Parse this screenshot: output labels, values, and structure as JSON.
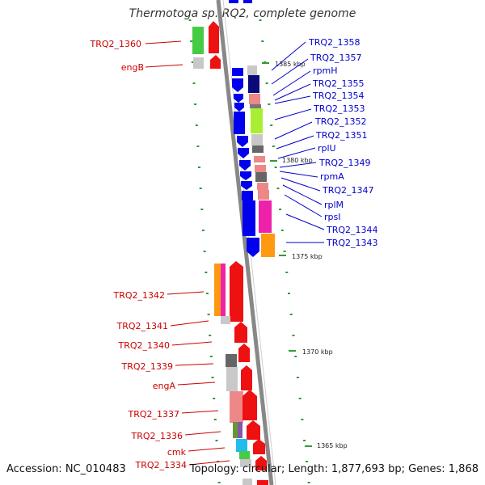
{
  "title": "Thermotoga sp. RQ2, complete genome",
  "accession_label": "Accession: NC_010483",
  "summary_label": "Topology: circular; Length: 1,877,693 bp; Genes: 1,868",
  "colors": {
    "forward_label": "#cc0000",
    "reverse_label": "#0000cc",
    "backbone": "#888888",
    "tick": "#339933"
  },
  "scale_ticks": [
    "1385 kbp",
    "1380 kbp",
    "1375 kbp",
    "1370 kbp",
    "1365 kbp"
  ],
  "genes_forward": [
    "TRQ2_1360",
    "engB",
    "TRQ2_1342",
    "TRQ2_1341",
    "TRQ2_1340",
    "TRQ2_1339",
    "engA",
    "TRQ2_1337",
    "TRQ2_1336",
    "cmk",
    "TRQ2_1334"
  ],
  "genes_reverse": [
    "TRQ2_1358",
    "TRQ2_1357",
    "rpmH",
    "TRQ2_1355",
    "TRQ2_1354",
    "TRQ2_1353",
    "TRQ2_1352",
    "TRQ2_1351",
    "rplU",
    "TRQ2_1349",
    "rpmA",
    "TRQ2_1347",
    "rplM",
    "rpsI",
    "TRQ2_1344",
    "TRQ2_1343"
  ]
}
